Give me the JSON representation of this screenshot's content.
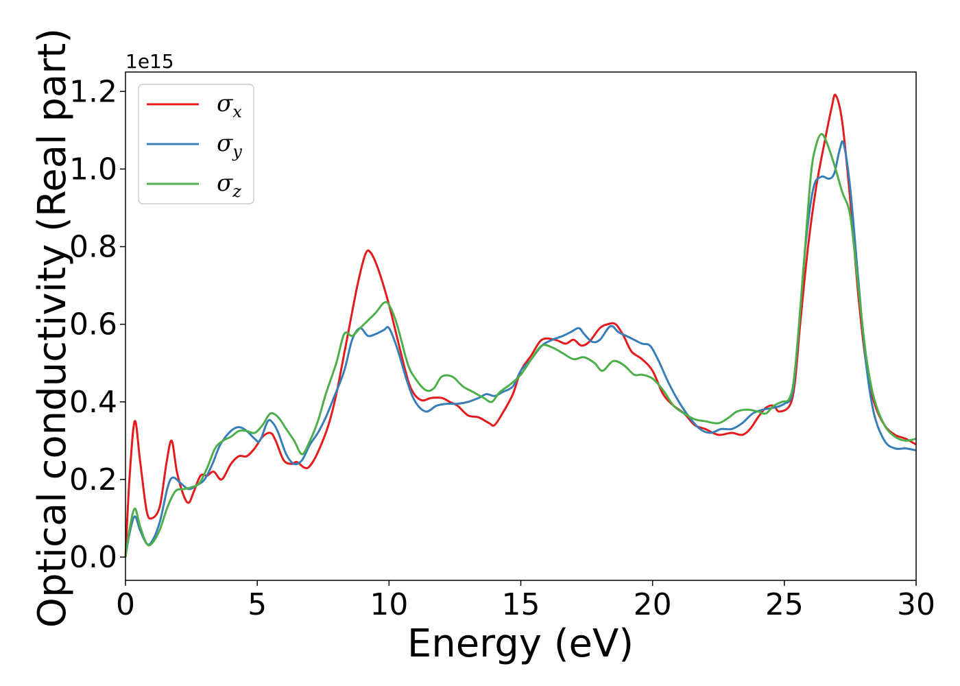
{
  "chart_data": {
    "type": "line",
    "xlabel": "Energy (eV)",
    "ylabel": "Optical conductivity (Real part)",
    "y_offset_label": "1e15",
    "xlim": [
      0,
      30
    ],
    "ylim": [
      -0.06,
      1.25
    ],
    "xticks": [
      0,
      5,
      10,
      15,
      20,
      25,
      30
    ],
    "xtick_labels": [
      "0",
      "5",
      "10",
      "15",
      "20",
      "25",
      "30"
    ],
    "yticks": [
      0.0,
      0.2,
      0.4,
      0.6,
      0.8,
      1.0,
      1.2
    ],
    "ytick_labels": [
      "0.0",
      "0.2",
      "0.4",
      "0.6",
      "0.8",
      "1.0",
      "1.2"
    ],
    "grid": false,
    "legend_position": "top-left",
    "series": [
      {
        "name": "σ",
        "subscript": "x",
        "color": "#e41a1c",
        "points": [
          [
            0,
            0
          ],
          [
            0.15,
            0.2
          ],
          [
            0.35,
            0.35
          ],
          [
            0.55,
            0.25
          ],
          [
            0.8,
            0.12
          ],
          [
            1.0,
            0.1
          ],
          [
            1.3,
            0.13
          ],
          [
            1.55,
            0.24
          ],
          [
            1.75,
            0.3
          ],
          [
            1.95,
            0.22
          ],
          [
            2.2,
            0.16
          ],
          [
            2.4,
            0.14
          ],
          [
            2.6,
            0.17
          ],
          [
            2.85,
            0.21
          ],
          [
            3.1,
            0.21
          ],
          [
            3.35,
            0.22
          ],
          [
            3.65,
            0.2
          ],
          [
            4.0,
            0.24
          ],
          [
            4.3,
            0.26
          ],
          [
            4.6,
            0.26
          ],
          [
            4.9,
            0.28
          ],
          [
            5.2,
            0.31
          ],
          [
            5.5,
            0.32
          ],
          [
            5.7,
            0.3
          ],
          [
            6.0,
            0.25
          ],
          [
            6.3,
            0.24
          ],
          [
            6.5,
            0.245
          ],
          [
            6.8,
            0.23
          ],
          [
            7.0,
            0.235
          ],
          [
            7.3,
            0.27
          ],
          [
            7.7,
            0.34
          ],
          [
            8.0,
            0.42
          ],
          [
            8.4,
            0.56
          ],
          [
            8.8,
            0.7
          ],
          [
            9.1,
            0.78
          ],
          [
            9.3,
            0.785
          ],
          [
            9.6,
            0.74
          ],
          [
            10.0,
            0.65
          ],
          [
            10.4,
            0.54
          ],
          [
            10.8,
            0.44
          ],
          [
            11.2,
            0.405
          ],
          [
            11.6,
            0.41
          ],
          [
            12.0,
            0.41
          ],
          [
            12.3,
            0.4
          ],
          [
            12.6,
            0.39
          ],
          [
            13.0,
            0.365
          ],
          [
            13.4,
            0.36
          ],
          [
            13.8,
            0.345
          ],
          [
            14.0,
            0.34
          ],
          [
            14.3,
            0.37
          ],
          [
            14.7,
            0.42
          ],
          [
            15.0,
            0.48
          ],
          [
            15.4,
            0.52
          ],
          [
            15.8,
            0.56
          ],
          [
            16.3,
            0.56
          ],
          [
            16.7,
            0.55
          ],
          [
            17.0,
            0.56
          ],
          [
            17.3,
            0.545
          ],
          [
            17.6,
            0.555
          ],
          [
            18.0,
            0.59
          ],
          [
            18.3,
            0.6
          ],
          [
            18.6,
            0.6
          ],
          [
            18.9,
            0.57
          ],
          [
            19.2,
            0.53
          ],
          [
            19.6,
            0.51
          ],
          [
            20.0,
            0.48
          ],
          [
            20.4,
            0.42
          ],
          [
            20.8,
            0.39
          ],
          [
            21.2,
            0.37
          ],
          [
            21.6,
            0.34
          ],
          [
            22.0,
            0.33
          ],
          [
            22.5,
            0.315
          ],
          [
            23.0,
            0.32
          ],
          [
            23.4,
            0.315
          ],
          [
            23.7,
            0.33
          ],
          [
            24.0,
            0.36
          ],
          [
            24.3,
            0.385
          ],
          [
            24.6,
            0.39
          ],
          [
            24.8,
            0.375
          ],
          [
            25.2,
            0.39
          ],
          [
            25.4,
            0.45
          ],
          [
            25.6,
            0.6
          ],
          [
            25.9,
            0.8
          ],
          [
            26.2,
            0.95
          ],
          [
            26.5,
            1.06
          ],
          [
            26.8,
            1.16
          ],
          [
            26.95,
            1.19
          ],
          [
            27.2,
            1.12
          ],
          [
            27.5,
            0.92
          ],
          [
            27.8,
            0.68
          ],
          [
            28.1,
            0.5
          ],
          [
            28.4,
            0.4
          ],
          [
            28.8,
            0.34
          ],
          [
            29.2,
            0.315
          ],
          [
            29.6,
            0.305
          ],
          [
            30.0,
            0.29
          ]
        ]
      },
      {
        "name": "σ",
        "subscript": "y",
        "color": "#377eb8",
        "points": [
          [
            0,
            0
          ],
          [
            0.15,
            0.06
          ],
          [
            0.35,
            0.105
          ],
          [
            0.55,
            0.07
          ],
          [
            0.8,
            0.035
          ],
          [
            1.0,
            0.04
          ],
          [
            1.3,
            0.09
          ],
          [
            1.6,
            0.18
          ],
          [
            1.8,
            0.205
          ],
          [
            2.1,
            0.19
          ],
          [
            2.4,
            0.175
          ],
          [
            2.7,
            0.185
          ],
          [
            3.0,
            0.2
          ],
          [
            3.3,
            0.24
          ],
          [
            3.6,
            0.29
          ],
          [
            4.0,
            0.325
          ],
          [
            4.3,
            0.335
          ],
          [
            4.6,
            0.325
          ],
          [
            4.9,
            0.305
          ],
          [
            5.1,
            0.3
          ],
          [
            5.4,
            0.35
          ],
          [
            5.6,
            0.345
          ],
          [
            5.8,
            0.32
          ],
          [
            6.1,
            0.265
          ],
          [
            6.4,
            0.24
          ],
          [
            6.7,
            0.25
          ],
          [
            7.0,
            0.29
          ],
          [
            7.3,
            0.32
          ],
          [
            7.6,
            0.36
          ],
          [
            7.9,
            0.41
          ],
          [
            8.3,
            0.48
          ],
          [
            8.6,
            0.56
          ],
          [
            8.9,
            0.59
          ],
          [
            9.2,
            0.57
          ],
          [
            9.5,
            0.575
          ],
          [
            9.8,
            0.585
          ],
          [
            10.0,
            0.59
          ],
          [
            10.3,
            0.54
          ],
          [
            10.7,
            0.45
          ],
          [
            11.0,
            0.4
          ],
          [
            11.4,
            0.375
          ],
          [
            11.8,
            0.39
          ],
          [
            12.2,
            0.395
          ],
          [
            12.6,
            0.395
          ],
          [
            13.0,
            0.4
          ],
          [
            13.4,
            0.41
          ],
          [
            13.7,
            0.42
          ],
          [
            14.0,
            0.415
          ],
          [
            14.3,
            0.425
          ],
          [
            14.7,
            0.44
          ],
          [
            15.0,
            0.48
          ],
          [
            15.4,
            0.51
          ],
          [
            15.8,
            0.545
          ],
          [
            16.2,
            0.56
          ],
          [
            16.6,
            0.57
          ],
          [
            16.9,
            0.58
          ],
          [
            17.2,
            0.59
          ],
          [
            17.4,
            0.575
          ],
          [
            17.7,
            0.555
          ],
          [
            18.0,
            0.56
          ],
          [
            18.4,
            0.595
          ],
          [
            18.7,
            0.58
          ],
          [
            19.0,
            0.57
          ],
          [
            19.3,
            0.56
          ],
          [
            19.6,
            0.55
          ],
          [
            19.9,
            0.545
          ],
          [
            20.2,
            0.51
          ],
          [
            20.6,
            0.45
          ],
          [
            21.0,
            0.4
          ],
          [
            21.4,
            0.36
          ],
          [
            21.8,
            0.33
          ],
          [
            22.2,
            0.32
          ],
          [
            22.6,
            0.33
          ],
          [
            23.0,
            0.33
          ],
          [
            23.4,
            0.345
          ],
          [
            23.8,
            0.37
          ],
          [
            24.2,
            0.38
          ],
          [
            24.6,
            0.385
          ],
          [
            25.0,
            0.395
          ],
          [
            25.3,
            0.42
          ],
          [
            25.5,
            0.55
          ],
          [
            25.8,
            0.8
          ],
          [
            26.1,
            0.95
          ],
          [
            26.4,
            0.98
          ],
          [
            26.7,
            0.975
          ],
          [
            26.9,
            0.99
          ],
          [
            27.1,
            1.05
          ],
          [
            27.25,
            1.065
          ],
          [
            27.5,
            0.95
          ],
          [
            27.8,
            0.72
          ],
          [
            28.1,
            0.5
          ],
          [
            28.4,
            0.37
          ],
          [
            28.8,
            0.3
          ],
          [
            29.2,
            0.28
          ],
          [
            29.6,
            0.28
          ],
          [
            30.0,
            0.275
          ]
        ]
      },
      {
        "name": "σ",
        "subscript": "z",
        "color": "#4daf4a",
        "points": [
          [
            0,
            0
          ],
          [
            0.15,
            0.07
          ],
          [
            0.35,
            0.125
          ],
          [
            0.55,
            0.08
          ],
          [
            0.8,
            0.035
          ],
          [
            1.0,
            0.035
          ],
          [
            1.3,
            0.07
          ],
          [
            1.6,
            0.13
          ],
          [
            1.9,
            0.17
          ],
          [
            2.2,
            0.175
          ],
          [
            2.5,
            0.18
          ],
          [
            2.8,
            0.19
          ],
          [
            3.1,
            0.23
          ],
          [
            3.4,
            0.28
          ],
          [
            3.7,
            0.3
          ],
          [
            4.0,
            0.31
          ],
          [
            4.3,
            0.325
          ],
          [
            4.6,
            0.325
          ],
          [
            4.9,
            0.32
          ],
          [
            5.2,
            0.34
          ],
          [
            5.5,
            0.37
          ],
          [
            5.8,
            0.36
          ],
          [
            6.1,
            0.33
          ],
          [
            6.4,
            0.3
          ],
          [
            6.7,
            0.265
          ],
          [
            7.0,
            0.3
          ],
          [
            7.3,
            0.35
          ],
          [
            7.6,
            0.42
          ],
          [
            8.0,
            0.5
          ],
          [
            8.3,
            0.575
          ],
          [
            8.6,
            0.57
          ],
          [
            8.9,
            0.59
          ],
          [
            9.2,
            0.61
          ],
          [
            9.5,
            0.63
          ],
          [
            9.8,
            0.655
          ],
          [
            10.0,
            0.65
          ],
          [
            10.3,
            0.6
          ],
          [
            10.7,
            0.5
          ],
          [
            11.0,
            0.46
          ],
          [
            11.4,
            0.43
          ],
          [
            11.7,
            0.435
          ],
          [
            12.0,
            0.465
          ],
          [
            12.4,
            0.465
          ],
          [
            12.8,
            0.44
          ],
          [
            13.2,
            0.425
          ],
          [
            13.6,
            0.41
          ],
          [
            13.9,
            0.4
          ],
          [
            14.2,
            0.425
          ],
          [
            14.6,
            0.445
          ],
          [
            15.0,
            0.47
          ],
          [
            15.4,
            0.51
          ],
          [
            15.8,
            0.545
          ],
          [
            16.2,
            0.54
          ],
          [
            16.6,
            0.525
          ],
          [
            17.0,
            0.51
          ],
          [
            17.4,
            0.515
          ],
          [
            17.8,
            0.5
          ],
          [
            18.1,
            0.48
          ],
          [
            18.5,
            0.505
          ],
          [
            18.9,
            0.495
          ],
          [
            19.3,
            0.47
          ],
          [
            19.6,
            0.47
          ],
          [
            20.0,
            0.46
          ],
          [
            20.4,
            0.43
          ],
          [
            20.8,
            0.39
          ],
          [
            21.2,
            0.37
          ],
          [
            21.6,
            0.355
          ],
          [
            22.0,
            0.35
          ],
          [
            22.5,
            0.345
          ],
          [
            22.9,
            0.36
          ],
          [
            23.2,
            0.375
          ],
          [
            23.6,
            0.38
          ],
          [
            24.0,
            0.375
          ],
          [
            24.3,
            0.37
          ],
          [
            24.6,
            0.39
          ],
          [
            24.9,
            0.4
          ],
          [
            25.2,
            0.41
          ],
          [
            25.4,
            0.48
          ],
          [
            25.7,
            0.72
          ],
          [
            26.0,
            0.98
          ],
          [
            26.2,
            1.06
          ],
          [
            26.4,
            1.09
          ],
          [
            26.6,
            1.07
          ],
          [
            26.9,
            1.01
          ],
          [
            27.2,
            0.94
          ],
          [
            27.5,
            0.88
          ],
          [
            27.8,
            0.7
          ],
          [
            28.1,
            0.52
          ],
          [
            28.4,
            0.41
          ],
          [
            28.8,
            0.34
          ],
          [
            29.2,
            0.31
          ],
          [
            29.6,
            0.3
          ],
          [
            30.0,
            0.305
          ]
        ]
      }
    ]
  }
}
